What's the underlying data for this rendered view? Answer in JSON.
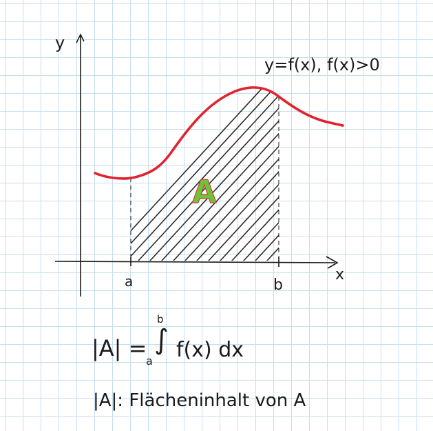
{
  "diagram": {
    "axis_y_label": "y",
    "axis_x_label": "x",
    "function_label": "y=f(x), f(x)>0",
    "lower_bound": "a",
    "upper_bound": "b",
    "area_label": "A",
    "curve_color": "#e0232e",
    "area_label_color": "#6fc23a",
    "hatch_color": "#2a2a2a",
    "grid_color": "#c7dff0"
  },
  "formulas": {
    "integral": {
      "lhs": "|A| =",
      "lower_limit": "a",
      "upper_limit": "b",
      "integrand": "f(x) dx"
    },
    "definition": "|A|: Flächeninhalt von A"
  }
}
